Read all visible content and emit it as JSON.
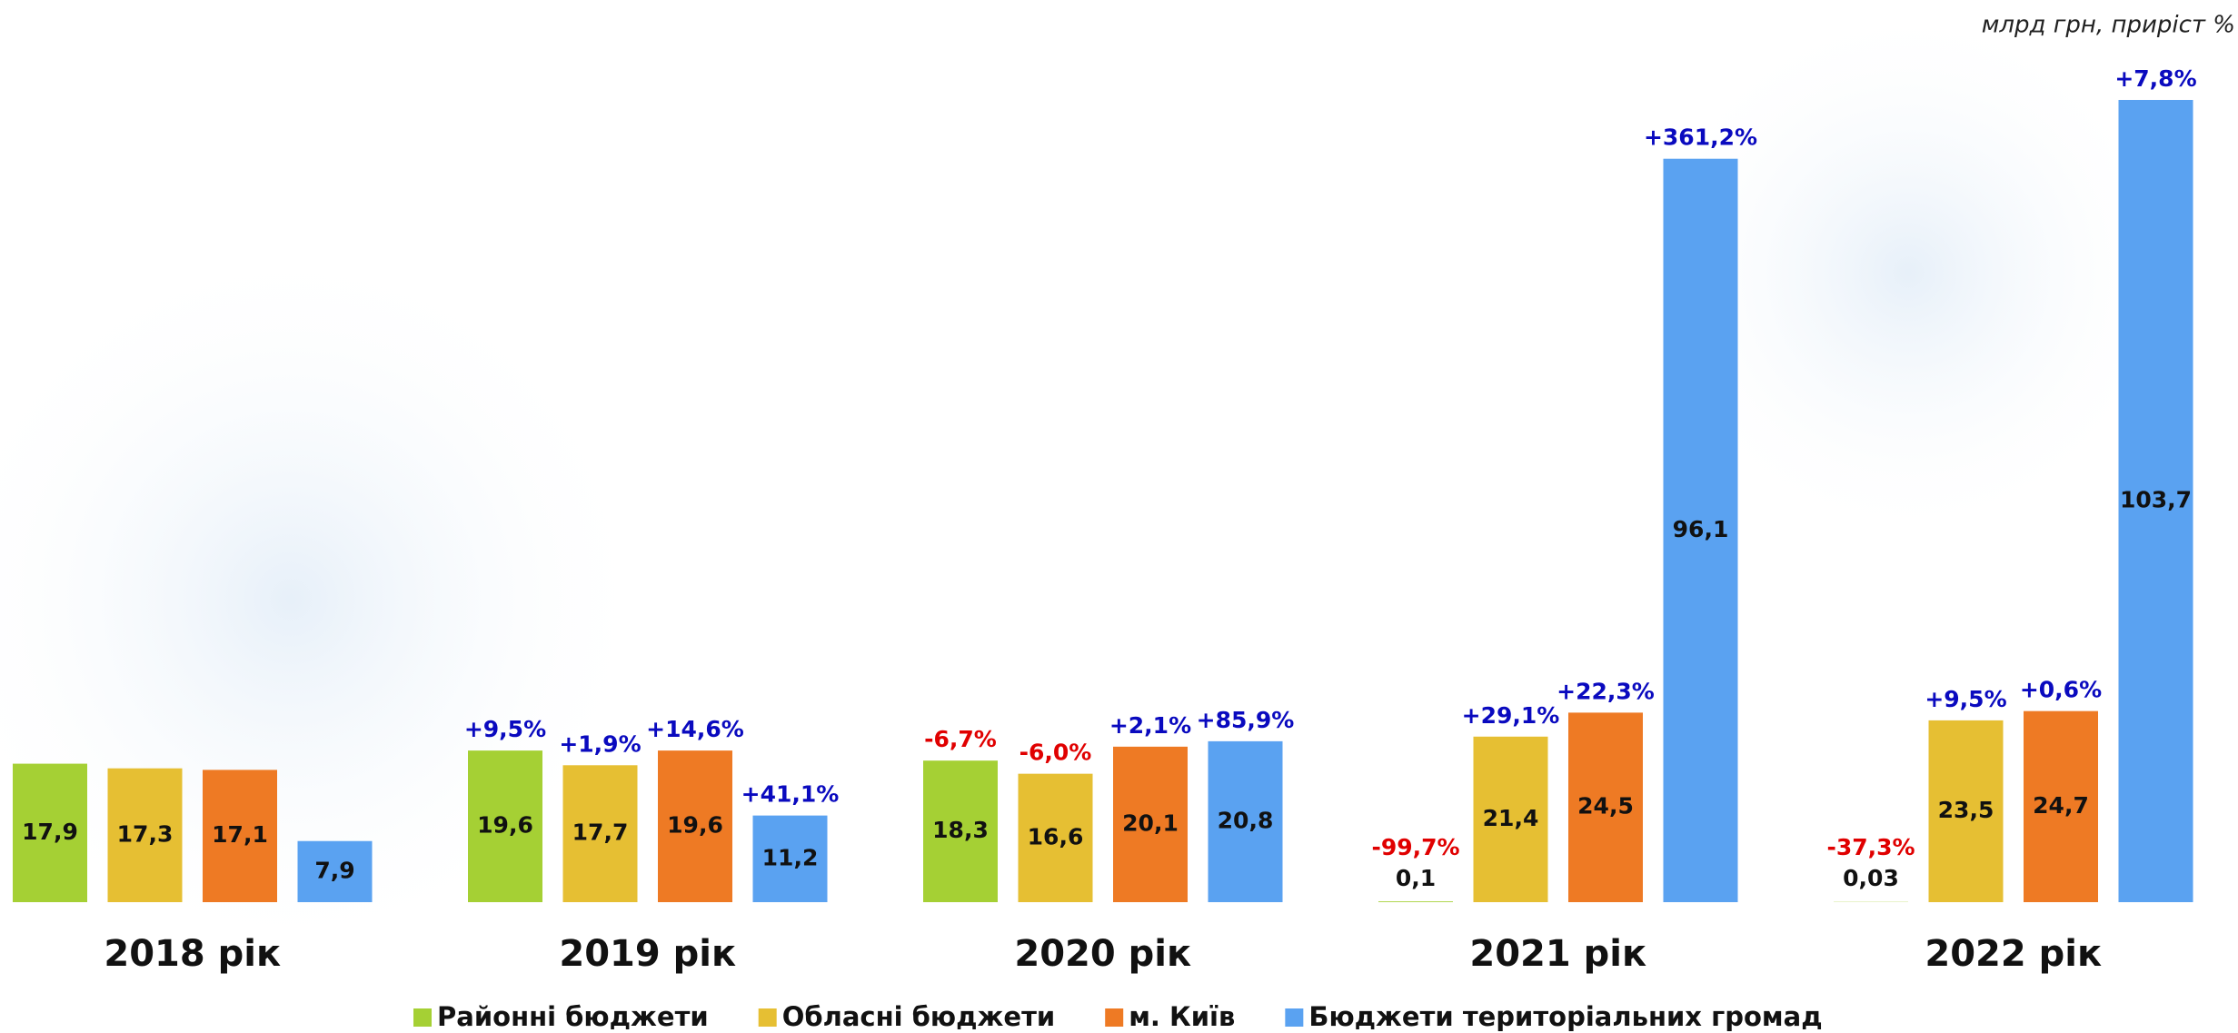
{
  "chart_data": {
    "type": "bar",
    "unit_note": "млрд грн, приріст %",
    "categories": [
      "2018 рік",
      "2019 рік",
      "2020 рік",
      "2021 рік",
      "2022 рік"
    ],
    "series": [
      {
        "name": "Районні бюджети",
        "color": "#a5d034",
        "values": [
          17.9,
          19.6,
          18.3,
          0.1,
          0.03
        ],
        "value_labels": [
          "17,9",
          "19,6",
          "18,3",
          "0,1",
          "0,03"
        ],
        "growth_labels": [
          null,
          "+9,5%",
          "-6,7%",
          "-99,7%",
          "-37,3%"
        ]
      },
      {
        "name": "Обласні бюджети",
        "color": "#e6bf33",
        "values": [
          17.3,
          17.7,
          16.6,
          21.4,
          23.5
        ],
        "value_labels": [
          "17,3",
          "17,7",
          "16,6",
          "21,4",
          "23,5"
        ],
        "growth_labels": [
          null,
          "+1,9%",
          "-6,0%",
          "+29,1%",
          "+9,5%"
        ]
      },
      {
        "name": "м. Київ",
        "color": "#ee7a24",
        "values": [
          17.1,
          19.6,
          20.1,
          24.5,
          24.7
        ],
        "value_labels": [
          "17,1",
          "19,6",
          "20,1",
          "24,5",
          "24,7"
        ],
        "growth_labels": [
          null,
          "+14,6%",
          "+2,1%",
          "+22,3%",
          "+0,6%"
        ]
      },
      {
        "name": "Бюджети територіальних громад",
        "color": "#5aa2f1",
        "values": [
          7.9,
          11.2,
          20.8,
          96.1,
          103.7
        ],
        "value_labels": [
          "7,9",
          "11,2",
          "20,8",
          "96,1",
          "103,7"
        ],
        "growth_labels": [
          null,
          "+41,1%",
          "+85,9%",
          "+361,2%",
          "+7,8%"
        ]
      }
    ]
  }
}
